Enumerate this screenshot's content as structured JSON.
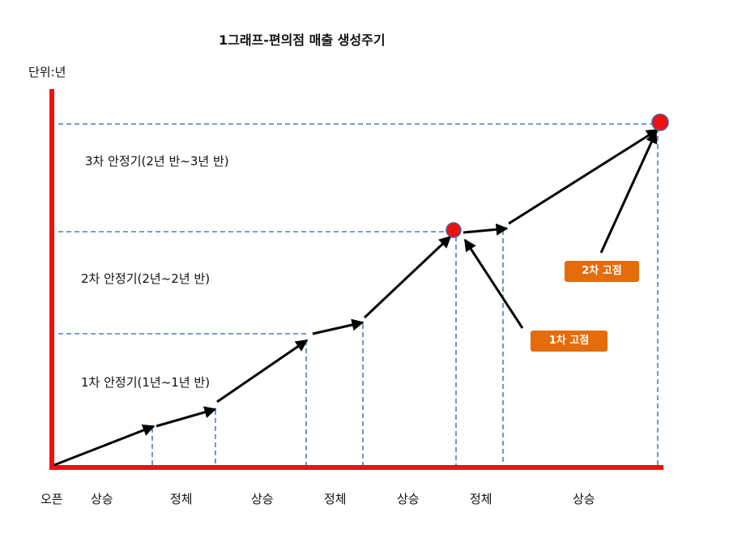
{
  "title": "1그래프-편의점 매출 생성주기",
  "unit_label": "단위:년",
  "stage_labels": {
    "stage3": "3차 안정기(2년 반~3년 반)",
    "stage2": "2차 안정기(2년~2년 반)",
    "stage1": "1차 안정기(1년~1년 반)"
  },
  "callouts": {
    "fixed1": "1차 고점",
    "fixed2": "2차 고점"
  },
  "x_labels": [
    "오픈",
    "상승",
    "정체",
    "상승",
    "정체",
    "상승",
    "정체",
    "상승"
  ],
  "colors": {
    "axis": "#ee1111",
    "guide": "#4a7ebb",
    "arrow": "#000000",
    "peak": "#ee1111",
    "callout": "#e46c0a"
  }
}
